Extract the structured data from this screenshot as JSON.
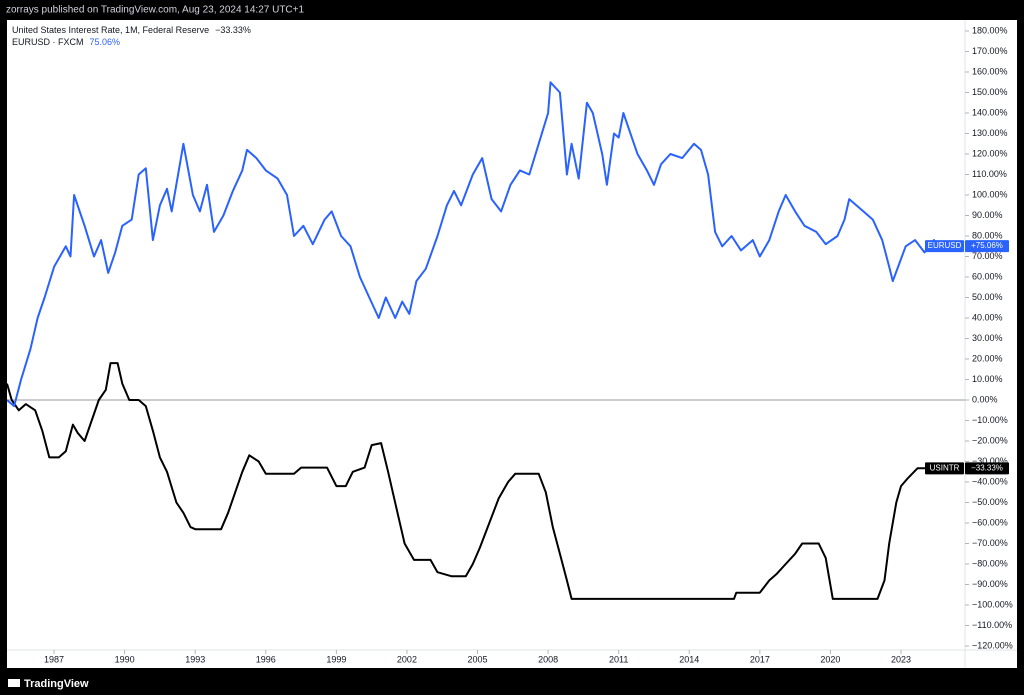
{
  "header": "zorrays published on TradingView.com, Aug 23, 2024 14:27 UTC+1",
  "footer": "TradingView",
  "chart_data": {
    "type": "line",
    "xlim": [
      1985,
      2025.72
    ],
    "xticks": [
      1987,
      1990,
      1993,
      1996,
      1999,
      2002,
      2005,
      2008,
      2011,
      2014,
      2017,
      2020,
      2023
    ],
    "ylim": [
      -120,
      180
    ],
    "yticks": [
      {
        "value": 180,
        "label": "180.00%"
      },
      {
        "value": 170,
        "label": "170.00%"
      },
      {
        "value": 160,
        "label": "160.00%"
      },
      {
        "value": 150,
        "label": "150.00%"
      },
      {
        "value": 140,
        "label": "140.00%"
      },
      {
        "value": 130,
        "label": "130.00%"
      },
      {
        "value": 120,
        "label": "120.00%"
      },
      {
        "value": 110,
        "label": "110.00%"
      },
      {
        "value": 100,
        "label": "100.00%"
      },
      {
        "value": 90,
        "label": "90.00%"
      },
      {
        "value": 80,
        "label": "80.00%"
      },
      {
        "value": 70,
        "label": "70.00%"
      },
      {
        "value": 60,
        "label": "60.00%"
      },
      {
        "value": 50,
        "label": "50.00%"
      },
      {
        "value": 40,
        "label": "40.00%"
      },
      {
        "value": 30,
        "label": "30.00%"
      },
      {
        "value": 20,
        "label": "20.00%"
      },
      {
        "value": 10,
        "label": "10.00%"
      },
      {
        "value": 0,
        "label": "0.00%"
      },
      {
        "value": -10,
        "label": "−10.00%"
      },
      {
        "value": -20,
        "label": "−20.00%"
      },
      {
        "value": -30,
        "label": "−30.00%"
      },
      {
        "value": -40,
        "label": "−40.00%"
      },
      {
        "value": -50,
        "label": "−50.00%"
      },
      {
        "value": -60,
        "label": "−60.00%"
      },
      {
        "value": -70,
        "label": "−70.00%"
      },
      {
        "value": -80,
        "label": "−80.00%"
      },
      {
        "value": -90,
        "label": "−90.00%"
      },
      {
        "value": -100,
        "label": "−100.00%"
      },
      {
        "value": -110,
        "label": "−110.00%"
      },
      {
        "value": -120,
        "label": "−120.00%"
      }
    ],
    "zero_line": 0,
    "series": [
      {
        "name": "United States Interest Rate, 1M, Federal Reserve",
        "legend_value": "−33.33%",
        "symbol": "USINTR",
        "tag_value": "−33.33%",
        "color": "#000000",
        "legend_color": "#131722",
        "x": [
          1985.0,
          1985.2,
          1985.5,
          1985.8,
          1986.2,
          1986.5,
          1986.8,
          1987.2,
          1987.5,
          1987.8,
          1988.0,
          1988.3,
          1988.6,
          1988.9,
          1989.2,
          1989.4,
          1989.7,
          1989.9,
          1990.2,
          1990.6,
          1990.9,
          1991.2,
          1991.5,
          1991.8,
          1992.2,
          1992.5,
          1992.8,
          1993.0,
          1994.1,
          1994.4,
          1994.7,
          1995.0,
          1995.3,
          1995.7,
          1996.0,
          1997.2,
          1997.5,
          1998.6,
          1999.0,
          1999.4,
          1999.7,
          2000.2,
          2000.5,
          2000.9,
          2001.2,
          2001.6,
          2001.9,
          2002.3,
          2003.0,
          2003.3,
          2003.9,
          2004.5,
          2004.8,
          2005.1,
          2005.5,
          2005.9,
          2006.3,
          2006.6,
          2007.6,
          2007.9,
          2008.2,
          2008.5,
          2008.8,
          2009.0,
          2015.9,
          2016.0,
          2017.0,
          2017.4,
          2017.7,
          2018.1,
          2018.5,
          2018.8,
          2019.5,
          2019.8,
          2020.1,
          2022.0,
          2022.3,
          2022.5,
          2022.8,
          2023.0,
          2023.3,
          2023.7,
          2024.65
        ],
        "values": [
          8,
          0,
          -5,
          -2,
          -5,
          -15,
          -28,
          -28,
          -25,
          -12,
          -16,
          -20,
          -10,
          0,
          5,
          18,
          18,
          8,
          0,
          0,
          -3,
          -15,
          -28,
          -35,
          -50,
          -55,
          -62,
          -63,
          -63,
          -55,
          -45,
          -35,
          -27,
          -30,
          -36,
          -36,
          -33,
          -33,
          -42,
          -42,
          -35,
          -33,
          -22,
          -21,
          -35,
          -55,
          -70,
          -78,
          -78,
          -84,
          -86,
          -86,
          -80,
          -72,
          -60,
          -48,
          -40,
          -36,
          -36,
          -45,
          -62,
          -75,
          -88,
          -97,
          -97,
          -94,
          -94,
          -88,
          -85,
          -80,
          -75,
          -70,
          -70,
          -77,
          -97,
          -97,
          -88,
          -70,
          -50,
          -42,
          -38,
          -33.33,
          -33.33
        ]
      },
      {
        "name": "EURUSD · FXCM",
        "legend_value": "75.06%",
        "symbol": "EURUSD",
        "tag_value": "+75.06%",
        "color": "#2962ff",
        "legend_color": "#2962ff",
        "x": [
          1985.0,
          1985.3,
          1985.6,
          1986.0,
          1986.3,
          1986.6,
          1987.0,
          1987.5,
          1987.7,
          1987.85,
          1988.3,
          1988.7,
          1989.0,
          1989.3,
          1989.6,
          1989.9,
          1990.3,
          1990.6,
          1990.9,
          1991.2,
          1991.5,
          1991.8,
          1992.0,
          1992.5,
          1992.9,
          1993.2,
          1993.5,
          1993.8,
          1994.2,
          1994.6,
          1995.0,
          1995.2,
          1995.6,
          1996.0,
          1996.5,
          1996.9,
          1997.2,
          1997.6,
          1998.0,
          1998.5,
          1998.8,
          1999.2,
          1999.6,
          2000.0,
          2000.4,
          2000.8,
          2001.1,
          2001.5,
          2001.8,
          2002.1,
          2002.4,
          2002.8,
          2003.3,
          2003.7,
          2004.0,
          2004.3,
          2004.8,
          2005.2,
          2005.6,
          2006.0,
          2006.4,
          2006.8,
          2007.2,
          2007.6,
          2008.0,
          2008.1,
          2008.5,
          2008.8,
          2009.0,
          2009.3,
          2009.65,
          2009.9,
          2010.3,
          2010.5,
          2010.8,
          2011.0,
          2011.2,
          2011.8,
          2012.2,
          2012.5,
          2012.8,
          2013.2,
          2013.7,
          2014.2,
          2014.5,
          2014.8,
          2015.1,
          2015.4,
          2015.8,
          2016.2,
          2016.7,
          2017.0,
          2017.4,
          2017.8,
          2018.1,
          2018.5,
          2018.9,
          2019.4,
          2019.8,
          2020.3,
          2020.6,
          2020.8,
          2021.4,
          2021.8,
          2022.2,
          2022.5,
          2022.65,
          2023.2,
          2023.6,
          2024.0,
          2024.4,
          2024.65
        ],
        "values": [
          0,
          -3,
          10,
          25,
          40,
          50,
          65,
          75,
          70,
          100,
          85,
          70,
          78,
          62,
          72,
          85,
          88,
          110,
          113,
          78,
          95,
          103,
          92,
          125,
          100,
          92,
          105,
          82,
          90,
          102,
          112,
          122,
          118,
          112,
          108,
          100,
          80,
          85,
          76,
          88,
          92,
          80,
          75,
          60,
          50,
          40,
          50,
          40,
          48,
          42,
          58,
          64,
          80,
          95,
          102,
          95,
          110,
          118,
          98,
          92,
          105,
          112,
          110,
          125,
          140,
          155,
          150,
          110,
          125,
          108,
          145,
          140,
          120,
          105,
          130,
          128,
          140,
          120,
          112,
          105,
          115,
          120,
          118,
          125,
          122,
          110,
          82,
          75,
          80,
          73,
          78,
          70,
          78,
          92,
          100,
          92,
          85,
          82,
          76,
          80,
          88,
          98,
          92,
          88,
          78,
          65,
          58,
          75,
          78,
          72,
          78,
          75.06
        ]
      }
    ]
  }
}
